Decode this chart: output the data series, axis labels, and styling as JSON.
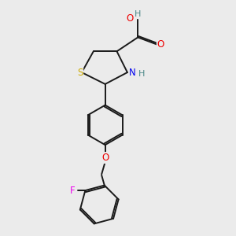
{
  "bg_color": "#ebebeb",
  "bond_color": "#1a1a1a",
  "bond_width": 1.4,
  "atom_colors": {
    "S": "#ccaa00",
    "N": "#0000ee",
    "O": "#ee0000",
    "F": "#ee00ee",
    "H": "#4a8888",
    "C": "#1a1a1a"
  },
  "font_size": 8.5,
  "font_size_H": 8.0
}
